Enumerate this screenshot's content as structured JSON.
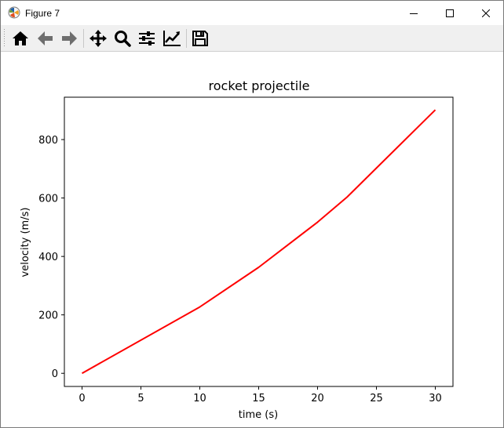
{
  "window": {
    "title": "Figure 7"
  },
  "titlebar_buttons": [
    {
      "name": "minimize-button",
      "icon": "minimize-icon"
    },
    {
      "name": "maximize-button",
      "icon": "maximize-icon"
    },
    {
      "name": "close-button",
      "icon": "close-icon"
    }
  ],
  "toolbar": {
    "buttons": [
      {
        "name": "home-button",
        "icon": "home-icon"
      },
      {
        "name": "back-button",
        "icon": "arrow-left-icon"
      },
      {
        "name": "forward-button",
        "icon": "arrow-right-icon"
      },
      {
        "name": "pan-button",
        "icon": "move-icon"
      },
      {
        "name": "zoom-button",
        "icon": "magnifier-icon"
      },
      {
        "name": "configure-subplots-button",
        "icon": "sliders-icon"
      },
      {
        "name": "edit-axes-button",
        "icon": "line-chart-icon"
      },
      {
        "name": "save-button",
        "icon": "floppy-disk-icon"
      }
    ]
  },
  "colors": {
    "line": "#ff0000",
    "axes": "#000000",
    "toolbar_bg": "#f0f0f0"
  },
  "chart_data": {
    "type": "line",
    "title": "rocket projectile",
    "xlabel": "time (s)",
    "ylabel": "velocity (m/s)",
    "xlim": [
      -1.5,
      31.5
    ],
    "ylim": [
      -45,
      945
    ],
    "xticks": [
      0,
      5,
      10,
      15,
      20,
      25,
      30
    ],
    "yticks": [
      0,
      200,
      400,
      600,
      800
    ],
    "grid": false,
    "series": [
      {
        "color": "#ff0000",
        "x": [
          0,
          10,
          15,
          20,
          22.5,
          30
        ],
        "y": [
          0,
          227.04,
          362.78,
          517.35,
          602.97,
          901.67
        ]
      }
    ]
  }
}
